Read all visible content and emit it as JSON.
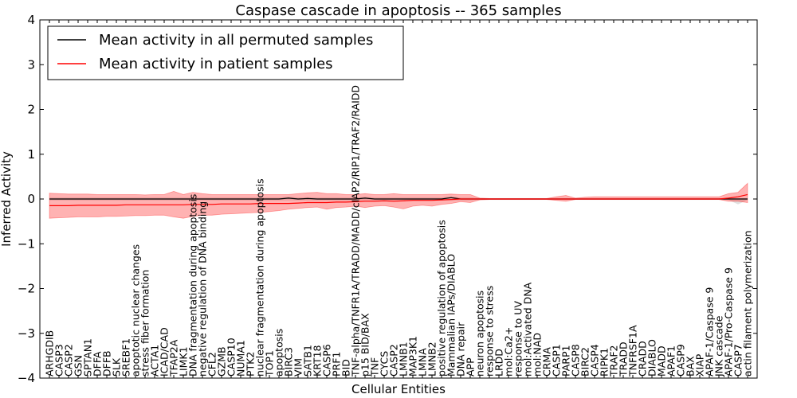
{
  "chart_data": {
    "type": "line",
    "title": "Caspase cascade in apoptosis -- 365 samples",
    "xlabel": "Cellular Entities",
    "ylabel": "Inferred Activity",
    "ylim": [
      -4,
      4
    ],
    "yticks": [
      -4,
      -3,
      -2,
      -1,
      0,
      1,
      2,
      3,
      4
    ],
    "legend_position": "upper-left",
    "categories": [
      "ARHGDIB",
      "CASP3",
      "CASP2",
      "GSN",
      "SPTAN1",
      "DFFA",
      "DFFB",
      "SLK",
      "SREBF1",
      "apoptotic nuclear changes",
      "stress fiber formation",
      "ACTA1",
      "ICAD/CAD",
      "TFAP2A",
      "LIMK1",
      "DNA fragmentation during apoptosis",
      "negative regulation of DNA binding",
      "CFL2",
      "GZMB",
      "CASP10",
      "NUMA1",
      "PTK2",
      "nuclear fragmentation during apoptosis",
      "TOP1",
      "apoptosis",
      "BIRC3",
      "VIM",
      "SATB1",
      "KRT18",
      "CASP6",
      "PRF1",
      "BID",
      "TNF-alpha/TNFR1A/TRADD/MADD/cIAP2/RIP1/TRAF2/RAIDD",
      "p15 BID/BAX",
      "TNF",
      "CYCS",
      "CASP2",
      "LMNB1",
      "MAP3K1",
      "LMNA",
      "LMNB2",
      "positive regulation of apoptosis",
      "Mammalian IAPs/DIABLO",
      "DNA repair",
      "APP",
      "neuron apoptosis",
      "response to stress",
      "LRDD",
      "mol:Ca2+",
      "response to UV",
      "mol:Activated DNA",
      "mol:NAD",
      "CRMA",
      "CASP1",
      "PARP1",
      "CASP8",
      "BIRC2",
      "CASP4",
      "RIPK1",
      "TRAF2",
      "TRADD",
      "TNFRSF1A",
      "CRADD",
      "DIABLO",
      "MADD",
      "APAF1",
      "CASP9",
      "BAX",
      "XIAP",
      "APAF-1/Caspase 9",
      "JNK cascade",
      "APAF-1/Pro-Caspase 9",
      "CASP7",
      "actin filament polymerization"
    ],
    "series": [
      {
        "name": "Mean activity in all permuted samples",
        "color": "#000000",
        "band_color": "#bbbbbb",
        "values": [
          0.0,
          0.0,
          0.0,
          0.0,
          0.0,
          0.0,
          0.0,
          0.0,
          0.0,
          0.0,
          0.0,
          0.0,
          0.0,
          0.0,
          0.0,
          0.0,
          0.0,
          0.0,
          0.0,
          0.0,
          0.0,
          0.0,
          0.0,
          0.0,
          0.0,
          0.02,
          0.0,
          0.01,
          0.0,
          0.0,
          0.0,
          0.0,
          0.0,
          0.02,
          0.0,
          0.0,
          0.0,
          0.0,
          0.0,
          0.0,
          0.0,
          0.0,
          0.03,
          0.0,
          0.0,
          0.0,
          0.0,
          0.0,
          0.0,
          0.0,
          0.0,
          0.0,
          0.0,
          0.0,
          0.0,
          0.0,
          0.0,
          0.0,
          0.0,
          0.0,
          0.0,
          0.0,
          0.0,
          0.0,
          0.0,
          0.0,
          0.0,
          0.0,
          0.0,
          0.0,
          0.0,
          0.0,
          0.0,
          0.0
        ],
        "lower": [
          -0.03,
          -0.03,
          -0.03,
          -0.03,
          -0.03,
          -0.03,
          -0.03,
          -0.03,
          -0.03,
          -0.03,
          -0.03,
          -0.03,
          -0.03,
          -0.03,
          -0.03,
          -0.03,
          -0.03,
          -0.03,
          -0.03,
          -0.03,
          -0.03,
          -0.03,
          -0.03,
          -0.03,
          -0.03,
          -0.03,
          -0.03,
          -0.03,
          -0.03,
          -0.03,
          -0.03,
          -0.03,
          -0.03,
          -0.03,
          -0.03,
          -0.03,
          -0.03,
          -0.03,
          -0.03,
          -0.03,
          -0.03,
          -0.03,
          -0.03,
          -0.03,
          -0.03,
          -0.02,
          -0.02,
          -0.02,
          -0.02,
          -0.02,
          -0.02,
          -0.02,
          -0.02,
          -0.02,
          -0.02,
          -0.02,
          -0.02,
          -0.02,
          -0.02,
          -0.02,
          -0.02,
          -0.02,
          -0.02,
          -0.02,
          -0.02,
          -0.02,
          -0.02,
          -0.02,
          -0.02,
          -0.02,
          -0.02,
          -0.02,
          -0.12,
          -0.02
        ],
        "upper": [
          0.03,
          0.03,
          0.03,
          0.03,
          0.03,
          0.03,
          0.03,
          0.03,
          0.03,
          0.03,
          0.03,
          0.03,
          0.03,
          0.03,
          0.03,
          0.03,
          0.03,
          0.03,
          0.03,
          0.03,
          0.03,
          0.03,
          0.03,
          0.03,
          0.03,
          0.05,
          0.03,
          0.04,
          0.03,
          0.03,
          0.03,
          0.03,
          0.03,
          0.05,
          0.03,
          0.03,
          0.03,
          0.03,
          0.03,
          0.03,
          0.03,
          0.03,
          0.06,
          0.03,
          0.03,
          0.02,
          0.02,
          0.02,
          0.02,
          0.02,
          0.02,
          0.02,
          0.02,
          0.02,
          0.02,
          0.02,
          0.02,
          0.02,
          0.02,
          0.02,
          0.02,
          0.02,
          0.02,
          0.02,
          0.02,
          0.02,
          0.02,
          0.02,
          0.02,
          0.02,
          0.02,
          0.02,
          0.02,
          0.02
        ]
      },
      {
        "name": "Mean activity in patient samples",
        "color": "#ff0000",
        "band_color": "#ff0000",
        "values": [
          -0.15,
          -0.15,
          -0.15,
          -0.14,
          -0.14,
          -0.14,
          -0.14,
          -0.14,
          -0.13,
          -0.13,
          -0.13,
          -0.13,
          -0.13,
          -0.13,
          -0.13,
          -0.12,
          -0.12,
          -0.12,
          -0.11,
          -0.11,
          -0.11,
          -0.11,
          -0.1,
          -0.1,
          -0.1,
          -0.1,
          -0.09,
          -0.08,
          -0.08,
          -0.08,
          -0.07,
          -0.07,
          -0.06,
          -0.05,
          -0.05,
          -0.04,
          -0.05,
          -0.04,
          -0.03,
          -0.03,
          -0.03,
          -0.02,
          -0.01,
          0.0,
          0.0,
          0.0,
          0.0,
          0.0,
          0.0,
          0.0,
          0.0,
          0.0,
          0.0,
          0.0,
          0.0,
          0.0,
          0.0,
          0.0,
          0.0,
          0.0,
          0.0,
          0.0,
          0.0,
          0.0,
          0.0,
          0.0,
          0.0,
          0.0,
          0.0,
          0.0,
          0.0,
          0.02,
          0.05,
          0.1
        ],
        "lower": [
          -0.43,
          -0.42,
          -0.41,
          -0.4,
          -0.4,
          -0.4,
          -0.39,
          -0.39,
          -0.38,
          -0.37,
          -0.37,
          -0.36,
          -0.36,
          -0.4,
          -0.43,
          -0.39,
          -0.36,
          -0.36,
          -0.34,
          -0.33,
          -0.32,
          -0.31,
          -0.3,
          -0.28,
          -0.26,
          -0.23,
          -0.21,
          -0.19,
          -0.18,
          -0.23,
          -0.19,
          -0.18,
          -0.16,
          -0.19,
          -0.16,
          -0.15,
          -0.18,
          -0.22,
          -0.16,
          -0.14,
          -0.16,
          -0.12,
          -0.1,
          -0.06,
          -0.08,
          -0.02,
          -0.01,
          -0.01,
          -0.01,
          -0.01,
          -0.01,
          -0.01,
          -0.01,
          -0.03,
          -0.05,
          -0.01,
          -0.01,
          -0.01,
          -0.01,
          -0.01,
          -0.01,
          -0.01,
          -0.01,
          -0.01,
          -0.01,
          -0.01,
          -0.01,
          -0.01,
          -0.01,
          -0.01,
          -0.01,
          -0.05,
          -0.05,
          -0.08
        ],
        "upper": [
          0.13,
          0.12,
          0.11,
          0.11,
          0.11,
          0.1,
          0.1,
          0.1,
          0.1,
          0.1,
          0.09,
          0.1,
          0.1,
          0.17,
          0.1,
          0.15,
          0.12,
          0.1,
          0.1,
          0.1,
          0.1,
          0.1,
          0.1,
          0.1,
          0.1,
          0.1,
          0.12,
          0.14,
          0.15,
          0.12,
          0.12,
          0.1,
          0.1,
          0.12,
          0.1,
          0.1,
          0.12,
          0.1,
          0.1,
          0.1,
          0.1,
          0.1,
          0.11,
          0.1,
          0.1,
          0.02,
          0.01,
          0.01,
          0.01,
          0.01,
          0.01,
          0.01,
          0.01,
          0.05,
          0.08,
          0.02,
          0.04,
          0.05,
          0.05,
          0.05,
          0.05,
          0.05,
          0.05,
          0.05,
          0.05,
          0.05,
          0.05,
          0.05,
          0.05,
          0.05,
          0.05,
          0.12,
          0.15,
          0.35
        ]
      }
    ]
  }
}
